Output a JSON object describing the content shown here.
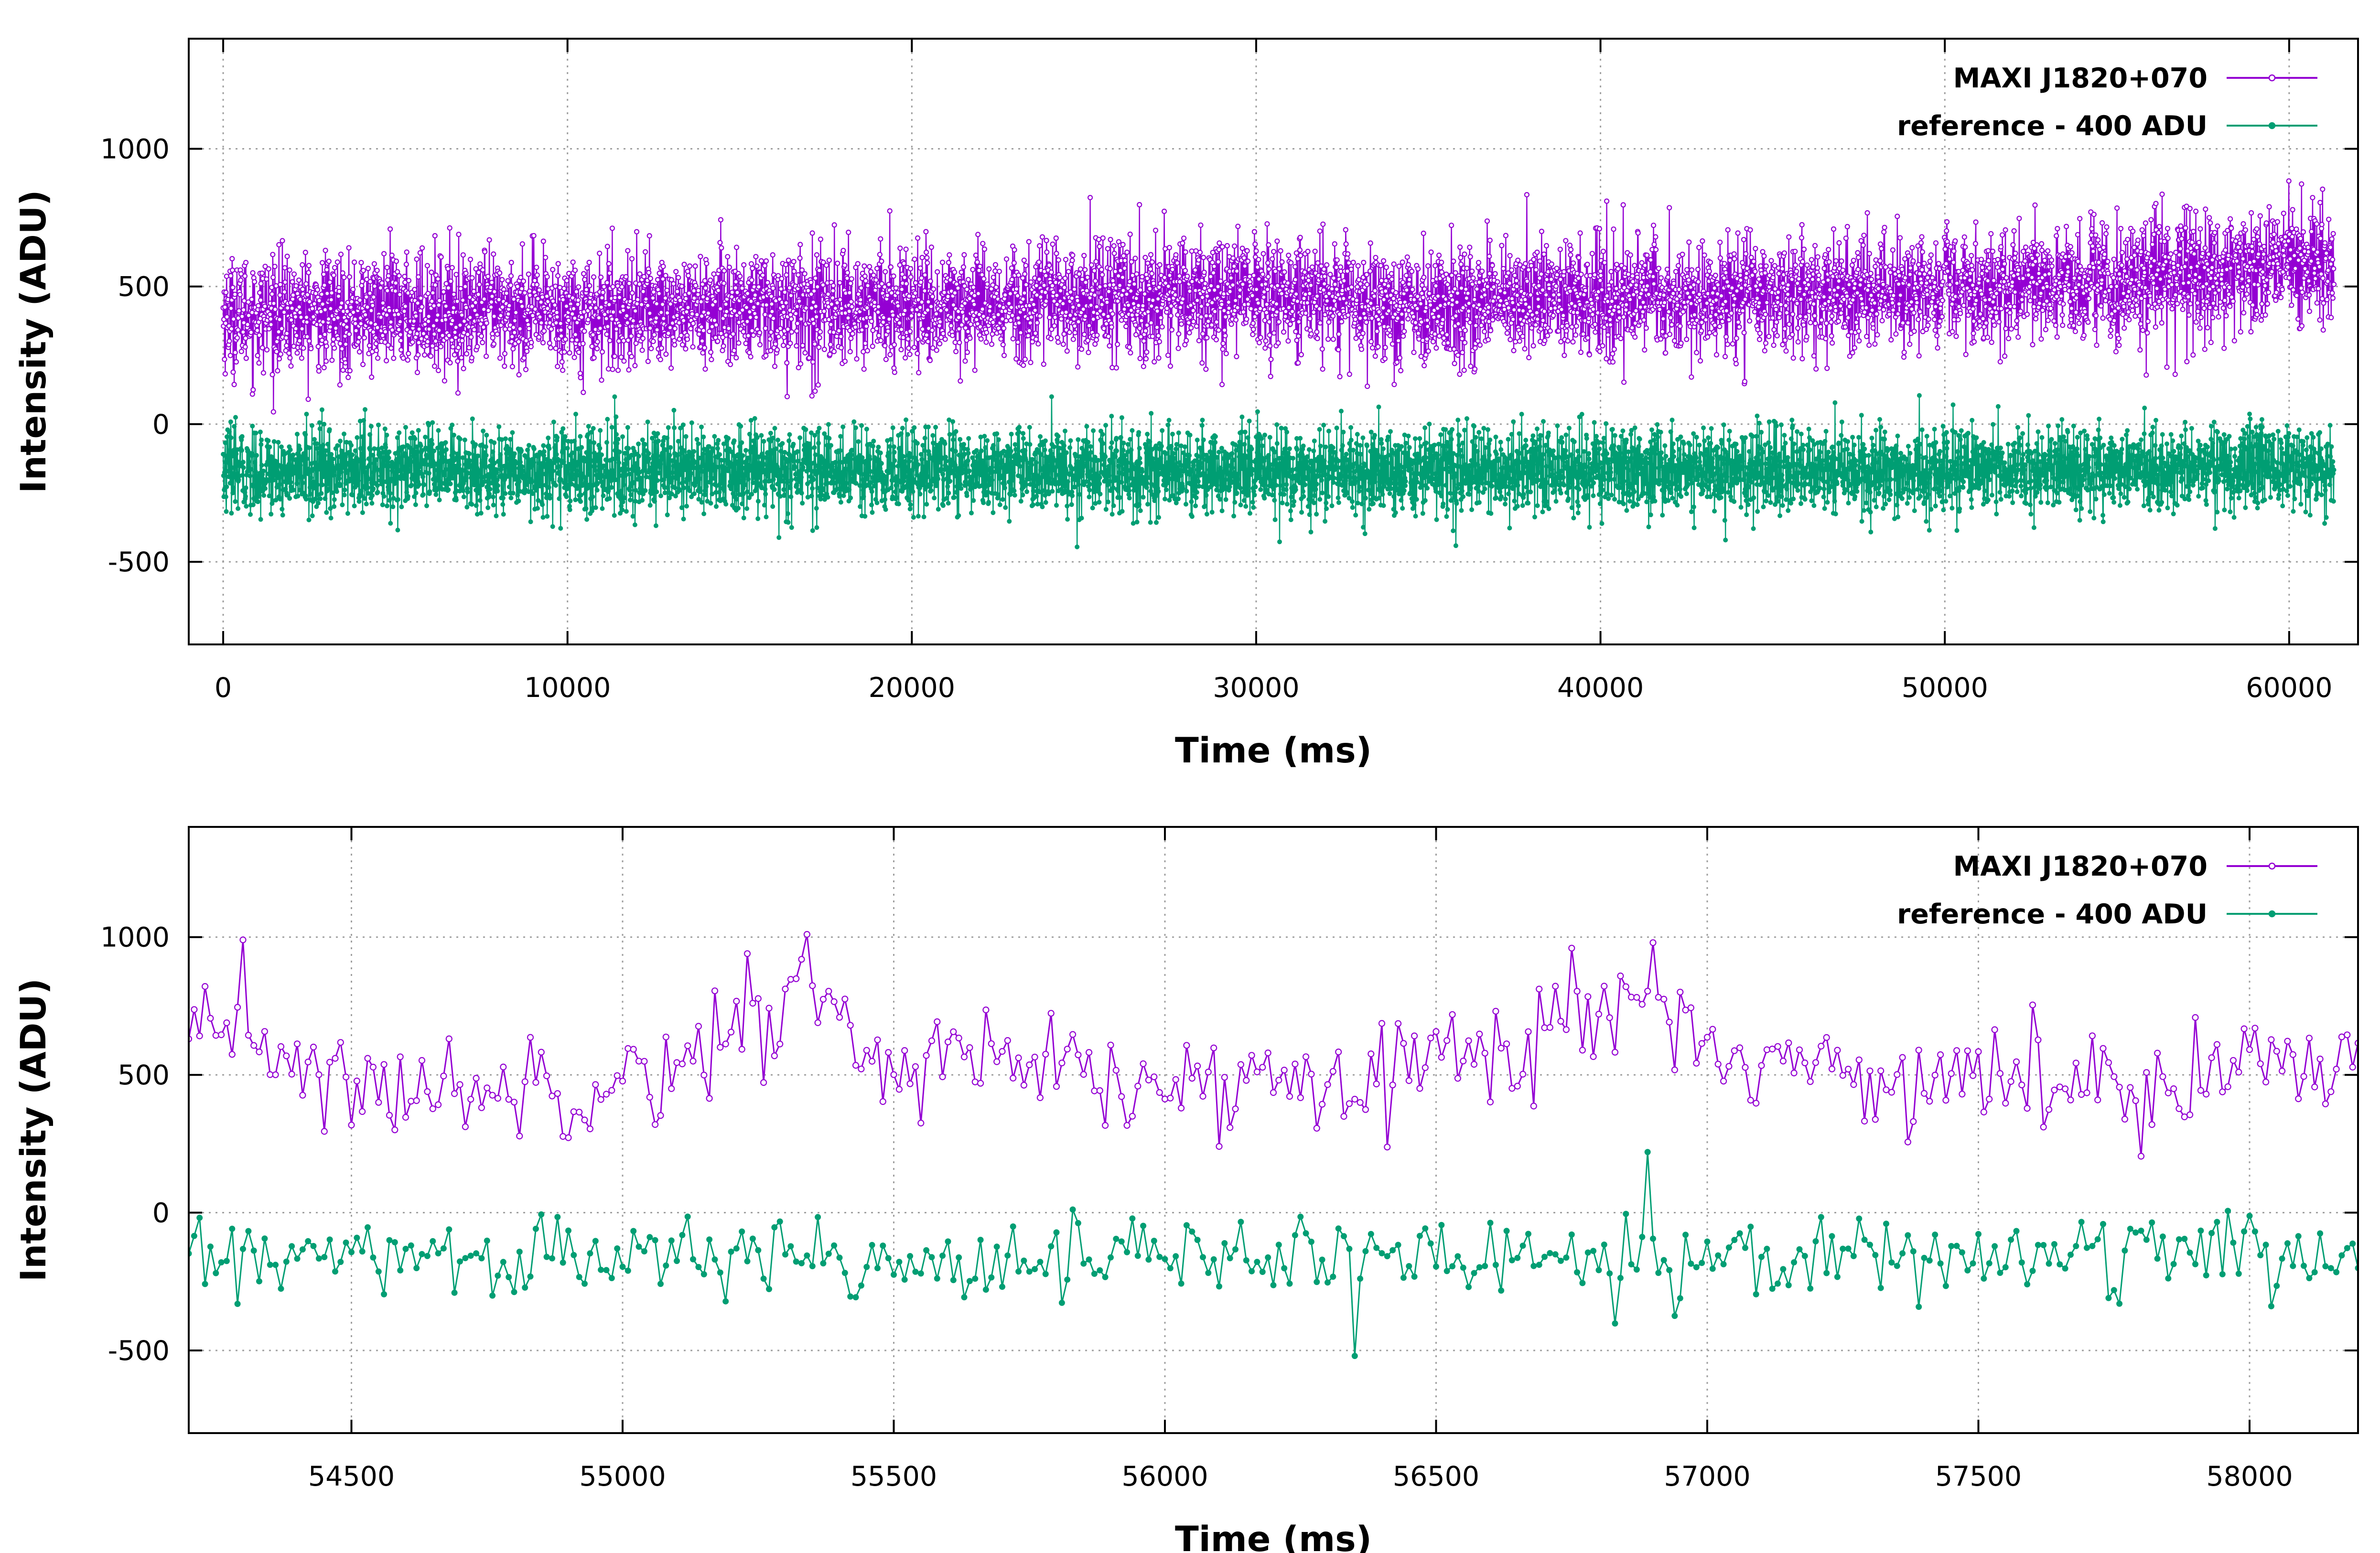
{
  "chart_data": [
    {
      "type": "line",
      "xlabel": "Time (ms)",
      "ylabel": "Intensity (ADU)",
      "xlim": [
        -1000,
        62000
      ],
      "ylim": [
        -800,
        1400
      ],
      "xticks": [
        0,
        10000,
        20000,
        30000,
        40000,
        50000,
        60000
      ],
      "yticks": [
        -500,
        0,
        500,
        1000
      ],
      "grid": true,
      "legend_position": "top-right",
      "series": [
        {
          "name": "MAXI J1820+070",
          "color": "#9400d3",
          "marker": "open-circle",
          "x_range": [
            0,
            61300
          ],
          "sample_step_ms": 10,
          "mean": 430,
          "spread": 120,
          "drift": [
            [
              0,
              400
            ],
            [
              10000,
              410
            ],
            [
              20000,
              430
            ],
            [
              30000,
              480
            ],
            [
              35000,
              430
            ],
            [
              40000,
              460
            ],
            [
              50000,
              480
            ],
            [
              55000,
              520
            ],
            [
              61300,
              600
            ]
          ]
        },
        {
          "name": "reference - 400 ADU",
          "color": "#009e73",
          "marker": "filled-circle",
          "x_range": [
            0,
            61300
          ],
          "sample_step_ms": 10,
          "mean": -170,
          "spread": 90,
          "drift": [
            [
              0,
              -170
            ],
            [
              30000,
              -170
            ],
            [
              61300,
              -160
            ]
          ]
        }
      ]
    },
    {
      "type": "line",
      "xlabel": "Time (ms)",
      "ylabel": "Intensity (ADU)",
      "xlim": [
        54200,
        58200
      ],
      "ylim": [
        -800,
        1400
      ],
      "xticks": [
        54500,
        55000,
        55500,
        56000,
        56500,
        57000,
        57500,
        58000
      ],
      "yticks": [
        -500,
        0,
        500,
        1000
      ],
      "grid": true,
      "legend_position": "top-right",
      "series": [
        {
          "name": "MAXI J1820+070",
          "color": "#9400d3",
          "marker": "open-circle",
          "x_range": [
            54200,
            58200
          ],
          "sample_step_ms": 10,
          "mean": 520,
          "spread": 110,
          "drift": [
            [
              54200,
              560
            ],
            [
              54300,
              700
            ],
            [
              54450,
              460
            ],
            [
              54600,
              450
            ],
            [
              55000,
              480
            ],
            [
              55200,
              620
            ],
            [
              55350,
              820
            ],
            [
              55450,
              560
            ],
            [
              55800,
              530
            ],
            [
              55900,
              430
            ],
            [
              56200,
              480
            ],
            [
              56400,
              570
            ],
            [
              56600,
              560
            ],
            [
              56750,
              700
            ],
            [
              56900,
              780
            ],
            [
              57000,
              600
            ],
            [
              57200,
              520
            ],
            [
              57600,
              470
            ],
            [
              58000,
              520
            ],
            [
              58200,
              600
            ]
          ],
          "peaks": [
            [
              54300,
              990
            ],
            [
              55340,
              1010
            ],
            [
              56900,
              980
            ],
            [
              56750,
              960
            ],
            [
              55230,
              940
            ]
          ]
        },
        {
          "name": "reference - 400 ADU",
          "color": "#009e73",
          "marker": "filled-circle",
          "x_range": [
            54200,
            58200
          ],
          "sample_step_ms": 10,
          "mean": -160,
          "spread": 85,
          "drift": [
            [
              54200,
              -170
            ],
            [
              58200,
              -150
            ]
          ],
          "peaks": [
            [
              56890,
              220
            ],
            [
              56350,
              -520
            ]
          ]
        }
      ]
    }
  ]
}
